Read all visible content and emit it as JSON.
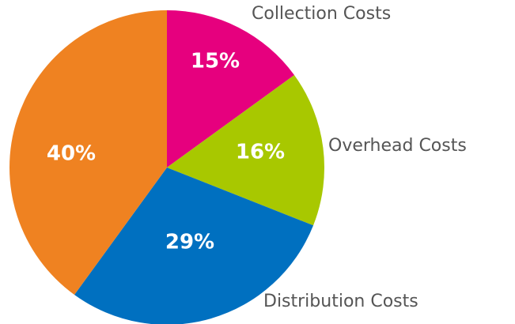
{
  "chart_data": {
    "type": "pie",
    "categories": [
      "Collection Costs",
      "Overhead Costs",
      "Distribution Costs",
      null
    ],
    "values": [
      15,
      16,
      29,
      40
    ],
    "value_labels": [
      "15%",
      "16%",
      "29%",
      "40%"
    ],
    "colors": [
      "#e6007e",
      "#a8c800",
      "#0070c0",
      "#ef8221"
    ]
  }
}
